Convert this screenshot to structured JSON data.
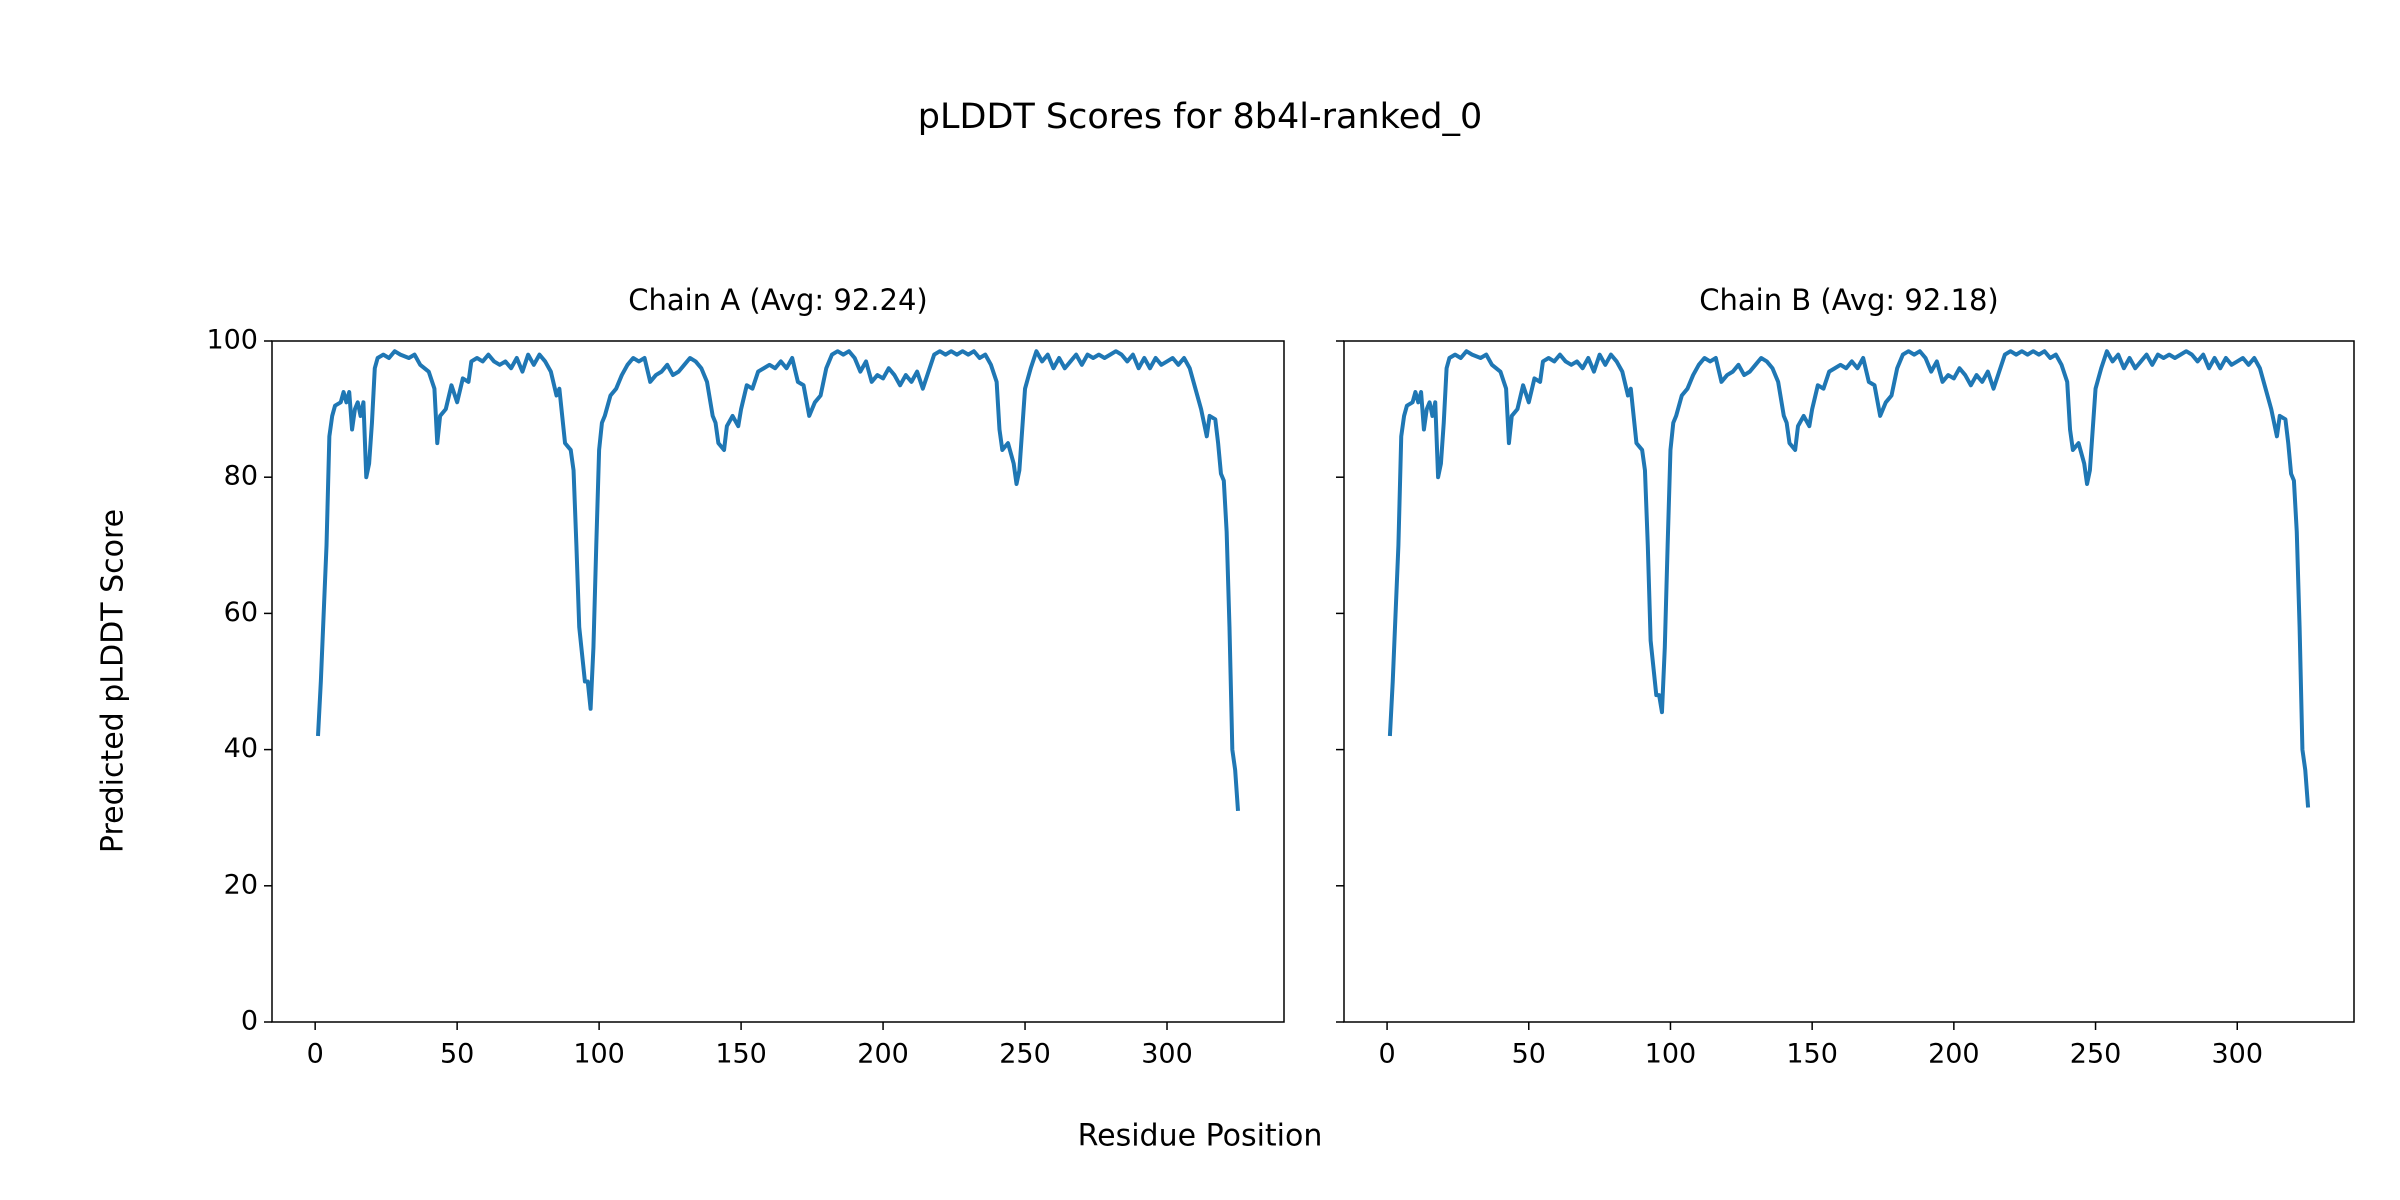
{
  "title": "pLDDT Scores for 8b4l-ranked_0",
  "x_label": "Residue Position",
  "y_label": "Predicted pLDDT Score",
  "chart_data": [
    {
      "type": "line",
      "title": "Chain A (Avg: 92.24)",
      "xlim": [
        -15.2,
        341.2
      ],
      "xticks": [
        0,
        50,
        100,
        150,
        200,
        250,
        300
      ],
      "ylim": [
        0,
        100
      ],
      "yticks": [
        0,
        20,
        40,
        60,
        80,
        100
      ],
      "show_ytick_labels": true,
      "x": [
        1,
        2,
        4,
        5,
        6,
        7,
        9,
        10,
        11,
        12,
        13,
        14,
        15,
        16,
        17,
        18,
        19,
        20,
        21,
        22,
        24,
        26,
        28,
        30,
        33,
        35,
        37,
        40,
        42,
        43,
        44,
        46,
        48,
        50,
        52,
        54,
        55,
        57,
        59,
        61,
        63,
        65,
        67,
        69,
        71,
        73,
        75,
        77,
        79,
        81,
        83,
        85,
        86,
        88,
        89,
        90,
        91,
        92,
        93,
        95,
        96,
        97,
        98,
        99,
        100,
        101,
        102,
        104,
        106,
        108,
        110,
        112,
        114,
        116,
        118,
        120,
        122,
        124,
        126,
        128,
        130,
        132,
        134,
        136,
        138,
        140,
        141,
        142,
        144,
        145,
        147,
        149,
        150,
        152,
        154,
        156,
        158,
        160,
        162,
        164,
        166,
        168,
        170,
        172,
        174,
        176,
        178,
        180,
        182,
        184,
        186,
        188,
        190,
        192,
        194,
        196,
        198,
        200,
        202,
        204,
        206,
        208,
        210,
        212,
        214,
        216,
        218,
        220,
        222,
        224,
        226,
        228,
        230,
        232,
        234,
        236,
        238,
        240,
        241,
        242,
        244,
        246,
        247,
        248,
        250,
        252,
        254,
        256,
        258,
        260,
        262,
        264,
        266,
        268,
        270,
        272,
        274,
        276,
        278,
        280,
        282,
        284,
        286,
        288,
        290,
        292,
        294,
        296,
        298,
        300,
        302,
        304,
        306,
        308,
        310,
        312,
        314,
        315,
        317,
        318,
        319,
        320,
        321,
        322,
        323,
        324,
        325
      ],
      "series": [
        {
          "color": "#1f77b4",
          "values": [
            42,
            50,
            70,
            86,
            89,
            90.5,
            91,
            92.5,
            91,
            92.5,
            87,
            90,
            91,
            89,
            91,
            80,
            82,
            88,
            96,
            97.5,
            98,
            97.5,
            98.5,
            98,
            97.5,
            98,
            96.5,
            95.5,
            93,
            85,
            89,
            90,
            93.5,
            91,
            94.5,
            94,
            97,
            97.5,
            97,
            98,
            97,
            96.5,
            97,
            96,
            97.5,
            95.5,
            98,
            96.5,
            98,
            97,
            95.5,
            92,
            93,
            85,
            84.5,
            84,
            81,
            70,
            58,
            50,
            50,
            46,
            55,
            70,
            84,
            88,
            89,
            92,
            93,
            95,
            96.5,
            97.5,
            97,
            97.5,
            94,
            95,
            95.5,
            96.5,
            95,
            95.5,
            96.5,
            97.5,
            97,
            96,
            94,
            89,
            88,
            85,
            84,
            87.5,
            89,
            87.5,
            90,
            93.5,
            93,
            95.5,
            96,
            96.5,
            96,
            97,
            96,
            97.5,
            94,
            93.5,
            89,
            91,
            92,
            96,
            98,
            98.5,
            98,
            98.5,
            97.5,
            95.5,
            97,
            94,
            95,
            94.5,
            96,
            95,
            93.5,
            95,
            94,
            95.5,
            93,
            95.5,
            98,
            98.5,
            98,
            98.5,
            98,
            98.5,
            98,
            98.5,
            97.5,
            98,
            96.5,
            94,
            87,
            84,
            85,
            82,
            79,
            81,
            93,
            96,
            98.5,
            97,
            98,
            96,
            97.5,
            96,
            97,
            98,
            96.5,
            98,
            97.5,
            98,
            97.5,
            98,
            98.5,
            98,
            97,
            98,
            96,
            97.5,
            96,
            97.5,
            96.5,
            97,
            97.5,
            96.5,
            97.5,
            96,
            93,
            90,
            86,
            89,
            88.5,
            85,
            80.5,
            79.5,
            72,
            58,
            40,
            37,
            31
          ]
        }
      ]
    },
    {
      "type": "line",
      "title": "Chain B (Avg: 92.18)",
      "xlim": [
        -15.2,
        341.2
      ],
      "xticks": [
        0,
        50,
        100,
        150,
        200,
        250,
        300
      ],
      "ylim": [
        0,
        100
      ],
      "yticks": [
        0,
        20,
        40,
        60,
        80,
        100
      ],
      "show_ytick_labels": false,
      "x": [
        1,
        2,
        4,
        5,
        6,
        7,
        9,
        10,
        11,
        12,
        13,
        14,
        15,
        16,
        17,
        18,
        19,
        20,
        21,
        22,
        24,
        26,
        28,
        30,
        33,
        35,
        37,
        40,
        42,
        43,
        44,
        46,
        48,
        50,
        52,
        54,
        55,
        57,
        59,
        61,
        63,
        65,
        67,
        69,
        71,
        73,
        75,
        77,
        79,
        81,
        83,
        85,
        86,
        88,
        89,
        90,
        91,
        92,
        93,
        95,
        96,
        97,
        98,
        99,
        100,
        101,
        102,
        104,
        106,
        108,
        110,
        112,
        114,
        116,
        118,
        120,
        122,
        124,
        126,
        128,
        130,
        132,
        134,
        136,
        138,
        140,
        141,
        142,
        144,
        145,
        147,
        149,
        150,
        152,
        154,
        156,
        158,
        160,
        162,
        164,
        166,
        168,
        170,
        172,
        174,
        176,
        178,
        180,
        182,
        184,
        186,
        188,
        190,
        192,
        194,
        196,
        198,
        200,
        202,
        204,
        206,
        208,
        210,
        212,
        214,
        216,
        218,
        220,
        222,
        224,
        226,
        228,
        230,
        232,
        234,
        236,
        238,
        240,
        241,
        242,
        244,
        246,
        247,
        248,
        250,
        252,
        254,
        256,
        258,
        260,
        262,
        264,
        266,
        268,
        270,
        272,
        274,
        276,
        278,
        280,
        282,
        284,
        286,
        288,
        290,
        292,
        294,
        296,
        298,
        300,
        302,
        304,
        306,
        308,
        310,
        312,
        314,
        315,
        317,
        318,
        319,
        320,
        321,
        322,
        323,
        324,
        325
      ],
      "series": [
        {
          "color": "#1f77b4",
          "values": [
            42,
            50,
            70,
            86,
            89,
            90.5,
            91,
            92.5,
            91,
            92.5,
            87,
            90,
            91,
            89,
            91,
            80,
            82,
            88,
            96,
            97.5,
            98,
            97.5,
            98.5,
            98,
            97.5,
            98,
            96.5,
            95.5,
            93,
            85,
            89,
            90,
            93.5,
            91,
            94.5,
            94,
            97,
            97.5,
            97,
            98,
            97,
            96.5,
            97,
            96,
            97.5,
            95.5,
            98,
            96.5,
            98,
            97,
            95.5,
            92,
            93,
            85,
            84.5,
            84,
            81,
            70,
            56,
            48,
            48,
            45.5,
            55,
            70,
            84,
            88,
            89,
            92,
            93,
            95,
            96.5,
            97.5,
            97,
            97.5,
            94,
            95,
            95.5,
            96.5,
            95,
            95.5,
            96.5,
            97.5,
            97,
            96,
            94,
            89,
            88,
            85,
            84,
            87.5,
            89,
            87.5,
            90,
            93.5,
            93,
            95.5,
            96,
            96.5,
            96,
            97,
            96,
            97.5,
            94,
            93.5,
            89,
            91,
            92,
            96,
            98,
            98.5,
            98,
            98.5,
            97.5,
            95.5,
            97,
            94,
            95,
            94.5,
            96,
            95,
            93.5,
            95,
            94,
            95.5,
            93,
            95.5,
            98,
            98.5,
            98,
            98.5,
            98,
            98.5,
            98,
            98.5,
            97.5,
            98,
            96.5,
            94,
            87,
            84,
            85,
            82,
            79,
            81,
            93,
            96,
            98.5,
            97,
            98,
            96,
            97.5,
            96,
            97,
            98,
            96.5,
            98,
            97.5,
            98,
            97.5,
            98,
            98.5,
            98,
            97,
            98,
            96,
            97.5,
            96,
            97.5,
            96.5,
            97,
            97.5,
            96.5,
            97.5,
            96,
            93,
            90,
            86,
            89,
            88.5,
            85,
            80.5,
            79.5,
            72,
            58,
            40,
            37,
            31.5
          ]
        }
      ]
    }
  ]
}
